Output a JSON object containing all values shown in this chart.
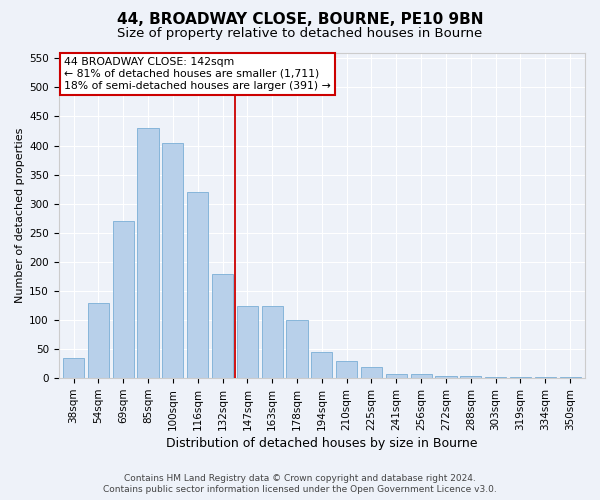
{
  "title": "44, BROADWAY CLOSE, BOURNE, PE10 9BN",
  "subtitle": "Size of property relative to detached houses in Bourne",
  "xlabel": "Distribution of detached houses by size in Bourne",
  "ylabel": "Number of detached properties",
  "footnote1": "Contains HM Land Registry data © Crown copyright and database right 2024.",
  "footnote2": "Contains public sector information licensed under the Open Government Licence v3.0.",
  "categories": [
    "38sqm",
    "54sqm",
    "69sqm",
    "85sqm",
    "100sqm",
    "116sqm",
    "132sqm",
    "147sqm",
    "163sqm",
    "178sqm",
    "194sqm",
    "210sqm",
    "225sqm",
    "241sqm",
    "256sqm",
    "272sqm",
    "288sqm",
    "303sqm",
    "319sqm",
    "334sqm",
    "350sqm"
  ],
  "values": [
    35,
    130,
    270,
    430,
    405,
    320,
    180,
    125,
    125,
    100,
    45,
    30,
    20,
    8,
    8,
    3,
    3,
    2,
    2,
    2,
    2
  ],
  "bar_color": "#b8d0ea",
  "bar_edge_color": "#7aaed6",
  "vline_x_idx": 6.5,
  "vline_color": "#cc0000",
  "annotation_line1": "44 BROADWAY CLOSE: 142sqm",
  "annotation_line2": "← 81% of detached houses are smaller (1,711)",
  "annotation_line3": "18% of semi-detached houses are larger (391) →",
  "annotation_box_color": "#cc0000",
  "annotation_fill": "#ffffff",
  "ylim": [
    0,
    560
  ],
  "yticks": [
    0,
    50,
    100,
    150,
    200,
    250,
    300,
    350,
    400,
    450,
    500,
    550
  ],
  "bg_color": "#eef2f9",
  "plot_bg_color": "#eef2f9",
  "grid_color": "#ffffff",
  "title_fontsize": 11,
  "subtitle_fontsize": 9.5,
  "ylabel_fontsize": 8,
  "xlabel_fontsize": 9,
  "tick_fontsize": 7.5,
  "footnote_fontsize": 6.5
}
